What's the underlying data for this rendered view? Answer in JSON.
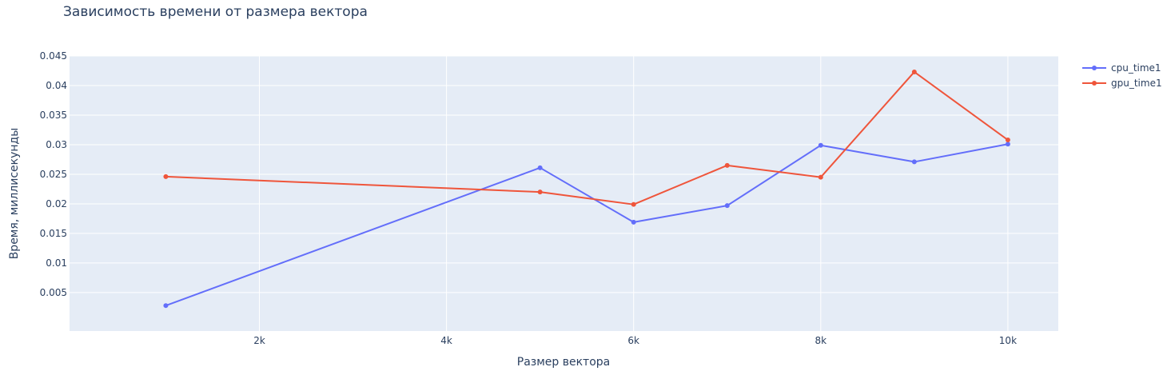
{
  "chart_data": {
    "type": "line",
    "title": "Зависимость времени от размера вектора",
    "xlabel": "Размер вектора",
    "ylabel": "Время, миллисекунды",
    "x": [
      1000,
      5000,
      6000,
      7000,
      8000,
      9000,
      10000
    ],
    "series": [
      {
        "name": "cpu_time1",
        "color": "#636efa",
        "values": [
          0.0028,
          0.0261,
          0.0169,
          0.0197,
          0.0299,
          0.0271,
          0.0301
        ]
      },
      {
        "name": "gpu_time1",
        "color": "#ef553b",
        "values": [
          0.0246,
          0.022,
          0.0199,
          0.0265,
          0.0245,
          0.0423,
          0.0308
        ]
      }
    ],
    "xlim": [
      -29,
      10539
    ],
    "ylim": [
      -0.0015,
      0.045
    ],
    "xticks": [
      {
        "value": 2000,
        "label": "2k"
      },
      {
        "value": 4000,
        "label": "4k"
      },
      {
        "value": 6000,
        "label": "6k"
      },
      {
        "value": 8000,
        "label": "8k"
      },
      {
        "value": 10000,
        "label": "10k"
      }
    ],
    "yticks": [
      {
        "value": 0.005,
        "label": "0.005"
      },
      {
        "value": 0.01,
        "label": "0.01"
      },
      {
        "value": 0.015,
        "label": "0.015"
      },
      {
        "value": 0.02,
        "label": "0.02"
      },
      {
        "value": 0.025,
        "label": "0.025"
      },
      {
        "value": 0.03,
        "label": "0.03"
      },
      {
        "value": 0.035,
        "label": "0.035"
      },
      {
        "value": 0.04,
        "label": "0.04"
      },
      {
        "value": 0.045,
        "label": "0.045"
      }
    ],
    "grid": true,
    "legend_position": "top-right",
    "plot_background": "#e5ecf6",
    "grid_color": "#ffffff",
    "text_color": "#2a3f5f"
  }
}
